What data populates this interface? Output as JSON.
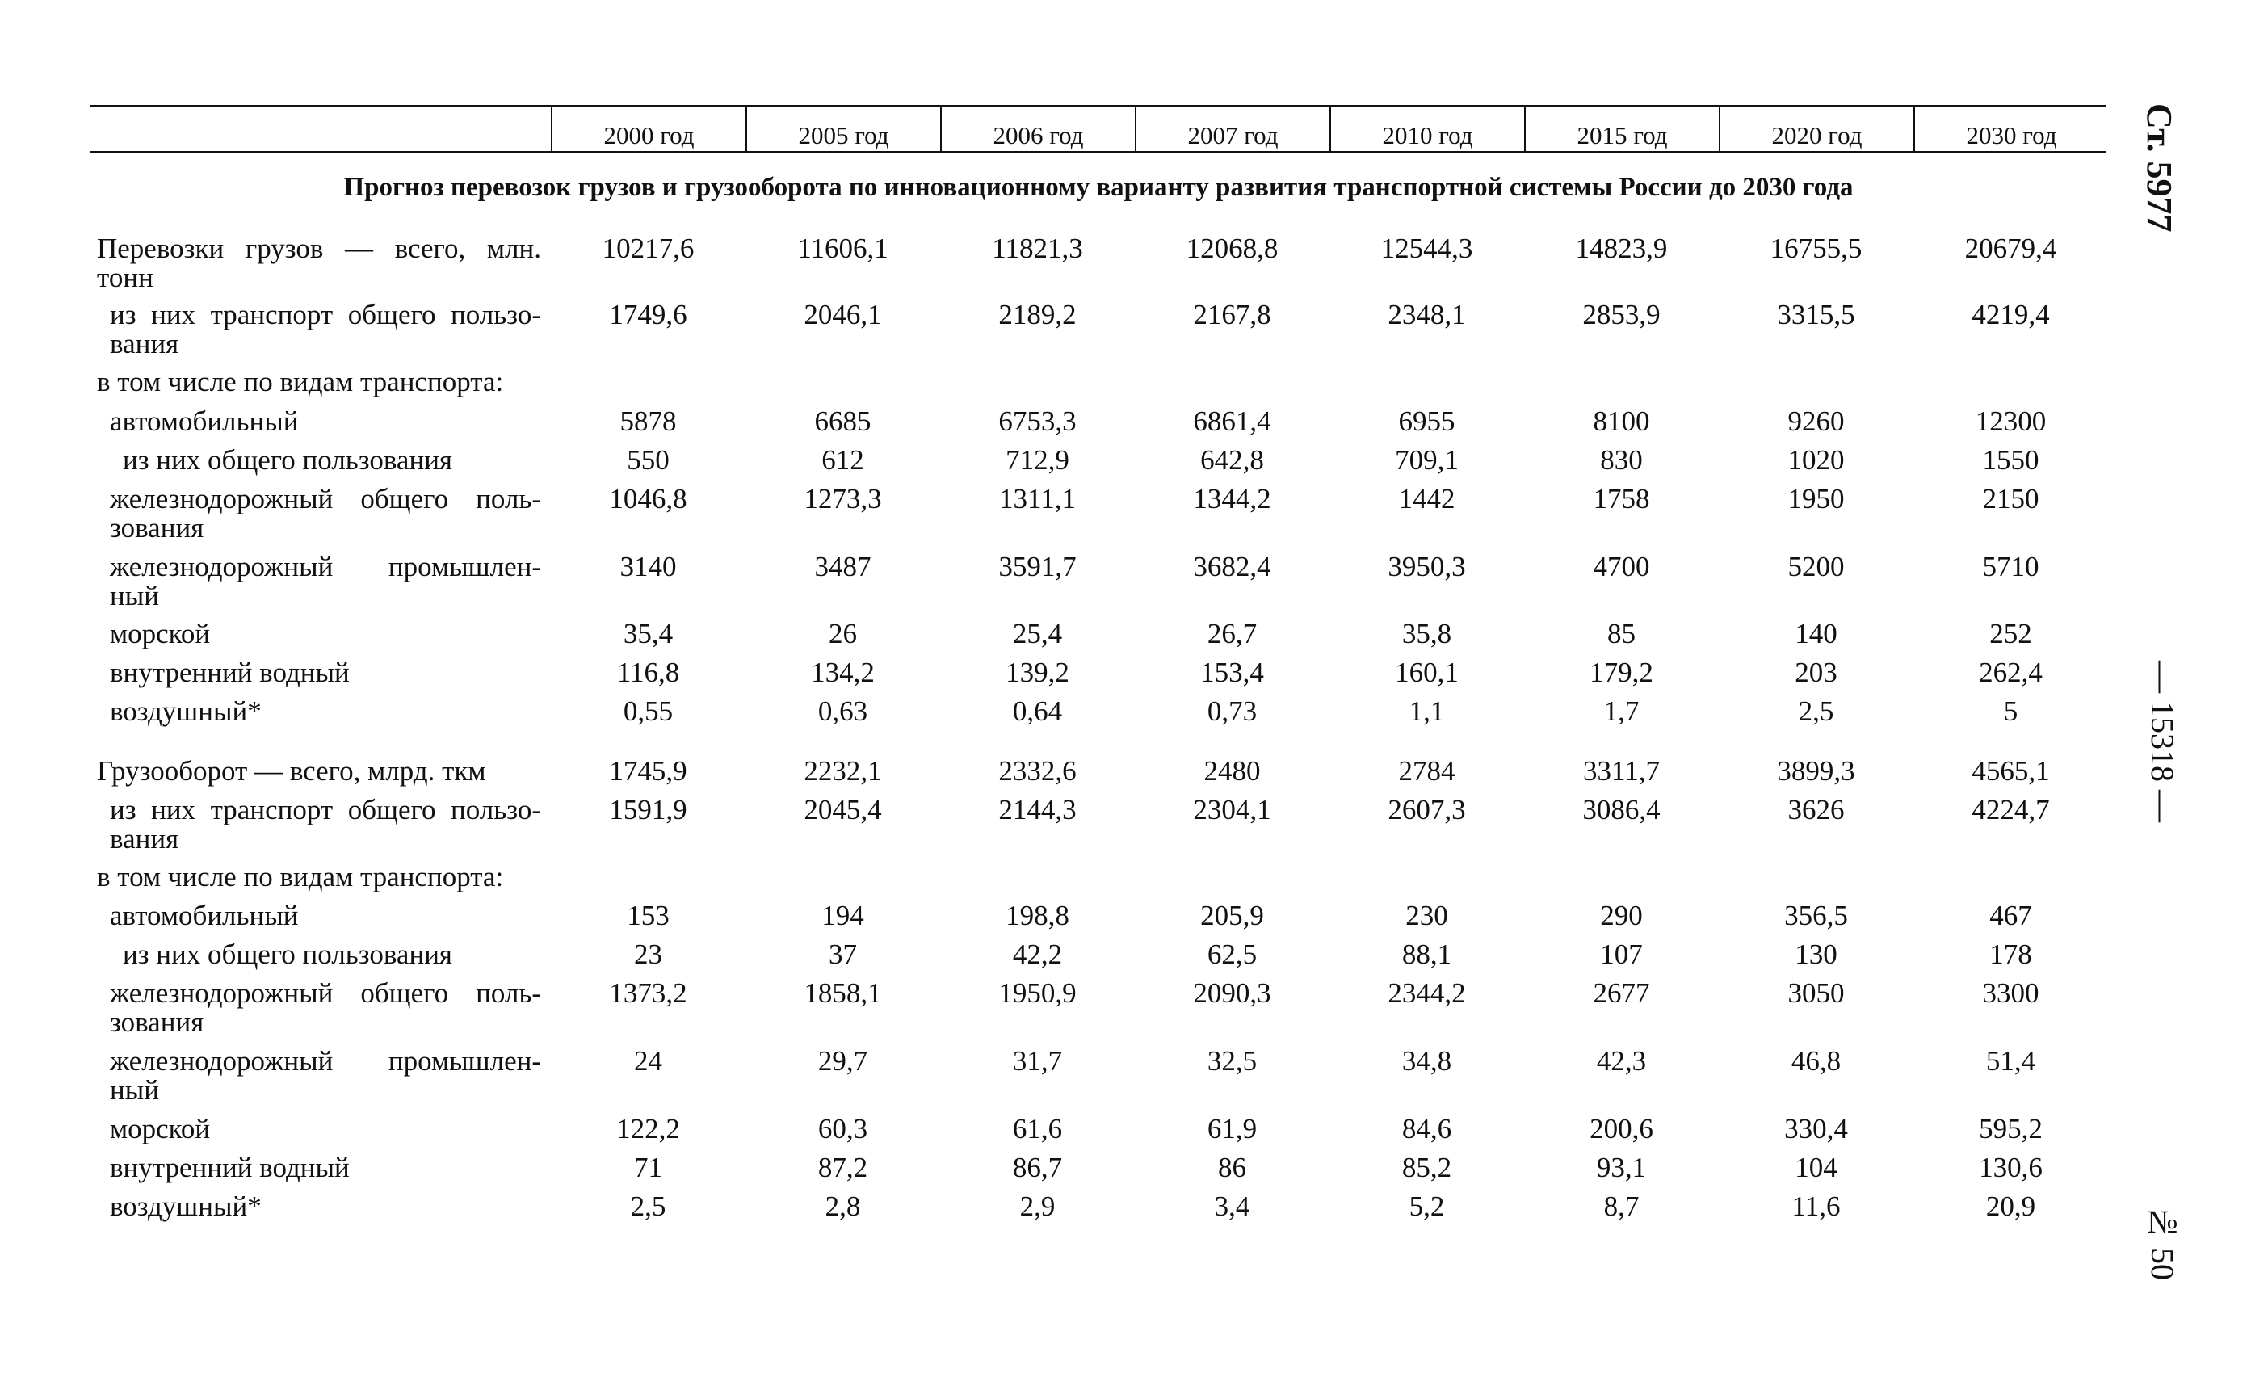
{
  "side": {
    "page_number": "Ст. 5977",
    "doc_number": "— 15318 —",
    "issue": "№ 50"
  },
  "header": {
    "years": [
      "2000 год",
      "2005 год",
      "2006 год",
      "2007 год",
      "2010 год",
      "2015 год",
      "2020 год",
      "2030 год"
    ]
  },
  "title": "Прогноз перевозок грузов и грузооборота по инновационному варианту развития транспортной системы России до 2030 года",
  "rows": [
    {
      "label": "Перевозки грузов — всего, млн. тонн",
      "values": [
        "10217,6",
        "11606,1",
        "11821,3",
        "12068,8",
        "12544,3",
        "14823,9",
        "16755,5",
        "20679,4"
      ]
    },
    {
      "label": "из них транспорт общего пользо-вания",
      "values": [
        "1749,6",
        "2046,1",
        "2189,2",
        "2167,8",
        "2348,1",
        "2853,9",
        "3315,5",
        "4219,4"
      ]
    },
    {
      "label": "в том числе по видам транспорта:",
      "values": []
    },
    {
      "label": "автомобильный",
      "values": [
        "5878",
        "6685",
        "6753,3",
        "6861,4",
        "6955",
        "8100",
        "9260",
        "12300"
      ]
    },
    {
      "label": "из них общего пользования",
      "values": [
        "550",
        "612",
        "712,9",
        "642,8",
        "709,1",
        "830",
        "1020",
        "1550"
      ]
    },
    {
      "label": "железнодорожный общего поль-зования",
      "values": [
        "1046,8",
        "1273,3",
        "1311,1",
        "1344,2",
        "1442",
        "1758",
        "1950",
        "2150"
      ]
    },
    {
      "label": "железнодорожный промышлен-ный",
      "values": [
        "3140",
        "3487",
        "3591,7",
        "3682,4",
        "3950,3",
        "4700",
        "5200",
        "5710"
      ]
    },
    {
      "label": "морской",
      "values": [
        "35,4",
        "26",
        "25,4",
        "26,7",
        "35,8",
        "85",
        "140",
        "252"
      ]
    },
    {
      "label": "внутренний водный",
      "values": [
        "116,8",
        "134,2",
        "139,2",
        "153,4",
        "160,1",
        "179,2",
        "203",
        "262,4"
      ]
    },
    {
      "label": "воздушный*",
      "values": [
        "0,55",
        "0,63",
        "0,64",
        "0,73",
        "1,1",
        "1,7",
        "2,5",
        "5"
      ]
    },
    {
      "label": "Грузооборот — всего, млрд. ткм",
      "values": [
        "1745,9",
        "2232,1",
        "2332,6",
        "2480",
        "2784",
        "3311,7",
        "3899,3",
        "4565,1"
      ]
    },
    {
      "label": "из них транспорт общего пользо-вания",
      "values": [
        "1591,9",
        "2045,4",
        "2144,3",
        "2304,1",
        "2607,3",
        "3086,4",
        "3626",
        "4224,7"
      ]
    },
    {
      "label": "в том числе по видам транспорта:",
      "values": []
    },
    {
      "label": "автомобильный",
      "values": [
        "153",
        "194",
        "198,8",
        "205,9",
        "230",
        "290",
        "356,5",
        "467"
      ]
    },
    {
      "label": "из них общего пользования",
      "values": [
        "23",
        "37",
        "42,2",
        "62,5",
        "88,1",
        "107",
        "130",
        "178"
      ]
    },
    {
      "label": "железнодорожный общего поль-зования",
      "values": [
        "1373,2",
        "1858,1",
        "1950,9",
        "2090,3",
        "2344,2",
        "2677",
        "3050",
        "3300"
      ]
    },
    {
      "label": "железнодорожный промышлен-ный",
      "values": [
        "24",
        "29,7",
        "31,7",
        "32,5",
        "34,8",
        "42,3",
        "46,8",
        "51,4"
      ]
    },
    {
      "label": "морской",
      "values": [
        "122,2",
        "60,3",
        "61,6",
        "61,9",
        "84,6",
        "200,6",
        "330,4",
        "595,2"
      ]
    },
    {
      "label": "внутренний водный",
      "values": [
        "71",
        "87,2",
        "86,7",
        "86",
        "85,2",
        "93,1",
        "104",
        "130,6"
      ]
    },
    {
      "label": "воздушный*",
      "values": [
        "2,5",
        "2,8",
        "2,9",
        "3,4",
        "5,2",
        "8,7",
        "11,6",
        "20,9"
      ]
    }
  ]
}
